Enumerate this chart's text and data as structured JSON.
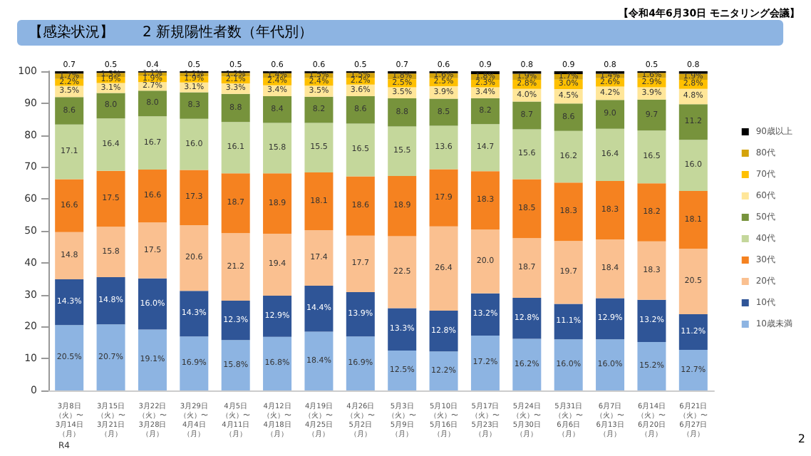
{
  "chart_data": {
    "type": "bar",
    "stacked": true,
    "title": "【感染状況】　　2 新規陽性者数（年代別）",
    "annotations": [
      "【令和4年6月30日 モニタリング会議】",
      "R4",
      "2"
    ],
    "categories": [
      "3月8日（火）〜3月14日（月）",
      "3月15日（火）〜3月21日（月）",
      "3月22日（火）〜3月28日（月）",
      "3月29日（火）〜4月4日（月）",
      "4月5日（火）〜4月11日（月）",
      "4月12日（火）〜4月18日（月）",
      "4月19日（火）〜4月25日（月）",
      "4月26日（火）〜5月2日（月）",
      "5月3日（火）〜5月9日（月）",
      "5月10日（火）〜5月16日（月）",
      "5月17日（火）〜5月23日（月）",
      "5月24日（火）〜5月30日（月）",
      "5月31日（火）〜6月6日（月）",
      "6月7日（火）〜6月13日（月）",
      "6月14日（火）〜6月20日（月）",
      "6月21日（火）〜6月27日（月）"
    ],
    "ylim": [
      0,
      100
    ],
    "yticks": [
      0,
      10,
      20,
      30,
      40,
      50,
      60,
      70,
      80,
      90,
      100
    ],
    "grid": false,
    "legend": "right",
    "series": [
      {
        "name": "10歳未満",
        "color": "#8db4e2",
        "values": [
          20.5,
          20.7,
          19.1,
          16.9,
          15.8,
          16.8,
          18.4,
          16.9,
          12.5,
          12.2,
          17.2,
          16.2,
          16.0,
          16.0,
          15.2,
          12.7
        ],
        "value_labels": [
          "20.5%",
          "20.7%",
          "19.1%",
          "16.9%",
          "15.8%",
          "16.8%",
          "18.4%",
          "16.9%",
          "12.5%",
          "12.2%",
          "17.2%",
          "16.2%",
          "16.0%",
          "16.0%",
          "15.2%",
          "12.7%"
        ]
      },
      {
        "name": "10代",
        "color": "#2f5597",
        "values": [
          14.3,
          14.8,
          16.0,
          14.3,
          12.3,
          12.9,
          14.4,
          13.9,
          13.3,
          12.8,
          13.2,
          12.8,
          11.1,
          12.9,
          13.2,
          11.2
        ],
        "value_labels": [
          "14.3%",
          "14.8%",
          "16.0%",
          "14.3%",
          "12.3%",
          "12.9%",
          "14.4%",
          "13.9%",
          "13.3%",
          "12.8%",
          "13.2%",
          "12.8%",
          "11.1%",
          "12.9%",
          "13.2%",
          "11.2%"
        ]
      },
      {
        "name": "20代",
        "color": "#fac090",
        "values": [
          14.8,
          15.8,
          17.5,
          20.6,
          21.2,
          19.4,
          17.4,
          17.7,
          22.5,
          26.4,
          20.0,
          18.7,
          19.7,
          18.4,
          18.3,
          20.5
        ],
        "value_labels": [
          "14.8",
          "15.8",
          "17.5",
          "20.6",
          "21.2",
          "19.4",
          "17.4",
          "17.7",
          "22.5",
          "26.4",
          "20.0",
          "18.7",
          "19.7",
          "18.4",
          "18.3",
          "20.5"
        ]
      },
      {
        "name": "30代",
        "color": "#f58220",
        "values": [
          16.6,
          17.5,
          16.6,
          17.3,
          18.7,
          18.9,
          18.1,
          18.6,
          18.9,
          17.9,
          18.3,
          18.5,
          18.3,
          18.3,
          18.2,
          18.1
        ],
        "value_labels": [
          "16.6",
          "17.5",
          "16.6",
          "17.3",
          "18.7",
          "18.9",
          "18.1",
          "18.6",
          "18.9",
          "17.9",
          "18.3",
          "18.5",
          "18.3",
          "18.3",
          "18.2",
          "18.1"
        ]
      },
      {
        "name": "40代",
        "color": "#c4d79b",
        "values": [
          17.1,
          16.4,
          16.7,
          16.0,
          16.1,
          15.8,
          15.5,
          16.5,
          15.5,
          13.6,
          14.7,
          15.6,
          16.2,
          16.4,
          16.5,
          16.0
        ],
        "value_labels": [
          "17.1",
          "16.4",
          "16.7",
          "16.0",
          "16.1",
          "15.8",
          "15.5",
          "16.5",
          "15.5",
          "13.6",
          "14.7",
          "15.6",
          "16.2",
          "16.4",
          "16.5",
          "16.0"
        ]
      },
      {
        "name": "50代",
        "color": "#77933c",
        "values": [
          8.6,
          8.0,
          8.0,
          8.3,
          8.8,
          8.4,
          8.2,
          8.6,
          8.8,
          8.5,
          8.2,
          8.7,
          8.6,
          9.0,
          9.7,
          11.2
        ],
        "value_labels": [
          "8.6",
          "8.0",
          "8.0",
          "8.3",
          "8.8",
          "8.4",
          "8.2",
          "8.6",
          "8.8",
          "8.5",
          "8.2",
          "8.7",
          "8.6",
          "9.0",
          "9.7",
          "11.2"
        ]
      },
      {
        "name": "60代",
        "color": "#ffe699",
        "values": [
          3.5,
          3.1,
          2.7,
          3.1,
          3.3,
          3.4,
          3.5,
          3.6,
          3.5,
          3.9,
          3.4,
          4.0,
          4.5,
          4.2,
          3.9,
          4.8
        ],
        "value_labels": [
          "3.5%",
          "3.1%",
          "2.7%",
          "3.1%",
          "3.3%",
          "3.4%",
          "3.5%",
          "3.6%",
          "3.5%",
          "3.9%",
          "3.4%",
          "4.0%",
          "4.5%",
          "4.2%",
          "3.9%",
          "4.8%"
        ]
      },
      {
        "name": "70代",
        "color": "#ffc000",
        "values": [
          2.2,
          1.9,
          1.9,
          1.9,
          2.1,
          2.4,
          2.4,
          2.2,
          2.5,
          2.5,
          2.3,
          2.8,
          3.0,
          2.6,
          2.9,
          2.8
        ],
        "value_labels": [
          "2.2%",
          "1.9%",
          "1.9%",
          "1.9%",
          "2.1%",
          "2.4%",
          "2.4%",
          "2.2%",
          "2.5%",
          "2.5%",
          "2.3%",
          "2.8%",
          "3.0%",
          "2.6%",
          "2.9%",
          "2.8%"
        ]
      },
      {
        "name": "80代",
        "color": "#d4a30a",
        "values": [
          1.7,
          1.3,
          1.1,
          1.1,
          1.2,
          1.4,
          1.5,
          1.5,
          1.8,
          1.6,
          1.8,
          1.9,
          1.7,
          1.4,
          1.6,
          1.9
        ],
        "value_labels": [
          "1.7%",
          "1.3%",
          "1.1%",
          "1.1%",
          "1.2%",
          "1.4%",
          "1.5%",
          "1.5%",
          "1.8%",
          "1.6%",
          "1.8%",
          "1.9%",
          "1.7%",
          "1.4%",
          "1.6%",
          "1.9%"
        ]
      },
      {
        "name": "90歳以上",
        "color": "#000000",
        "values": [
          0.7,
          0.5,
          0.4,
          0.5,
          0.5,
          0.6,
          0.6,
          0.5,
          0.7,
          0.6,
          0.9,
          0.8,
          0.9,
          0.8,
          0.5,
          0.8
        ],
        "value_labels": [
          "0.7",
          "0.5",
          "0.4",
          "0.5",
          "0.5",
          "0.6",
          "0.6",
          "0.5",
          "0.7",
          "0.6",
          "0.9",
          "0.8",
          "0.9",
          "0.8",
          "0.5",
          "0.8"
        ]
      }
    ]
  }
}
